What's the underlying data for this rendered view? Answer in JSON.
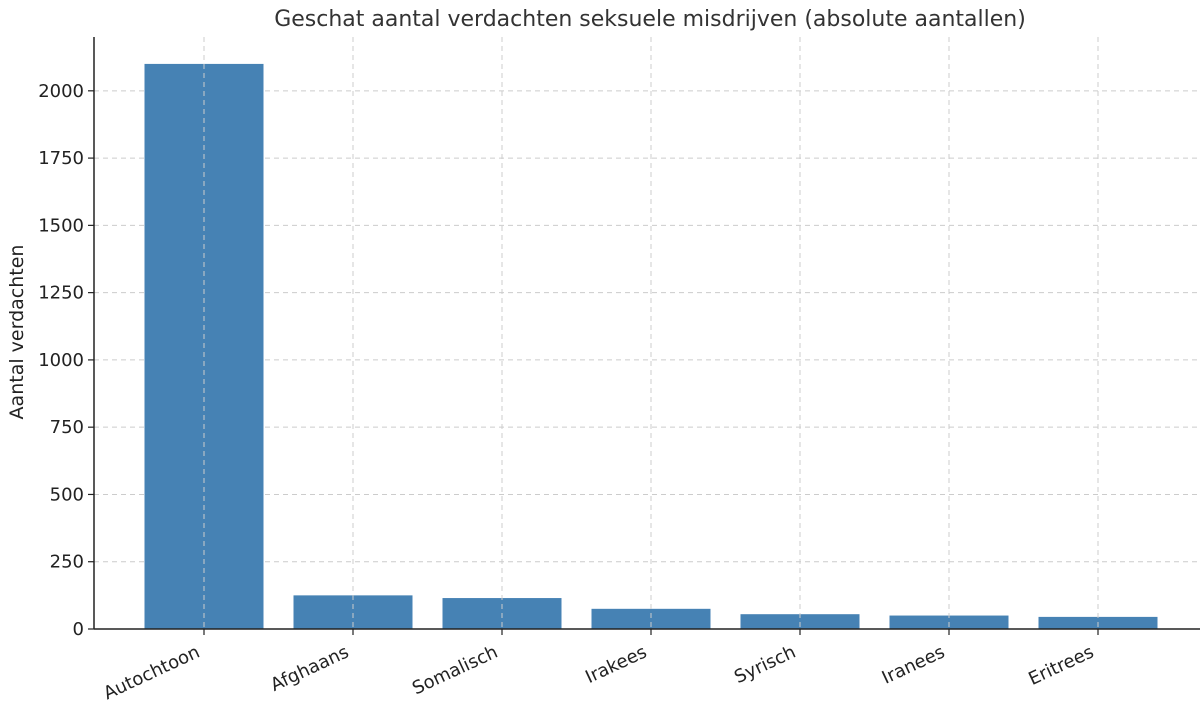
{
  "chart_data": {
    "type": "bar",
    "title": "Geschat aantal verdachten seksuele misdrijven (absolute aantallen)",
    "xlabel": "",
    "ylabel": "Aantal verdachten",
    "categories": [
      "Autochtoon",
      "Afghaans",
      "Somalisch",
      "Irakees",
      "Syrisch",
      "Iranees",
      "Eritrees"
    ],
    "values": [
      2100,
      125,
      115,
      75,
      55,
      50,
      45
    ],
    "ylim": [
      0,
      2200
    ],
    "yticks": [
      0,
      250,
      500,
      750,
      1000,
      1250,
      1500,
      1750,
      2000
    ],
    "grid": true,
    "bar_color": "#4682b4",
    "legend": "none"
  }
}
